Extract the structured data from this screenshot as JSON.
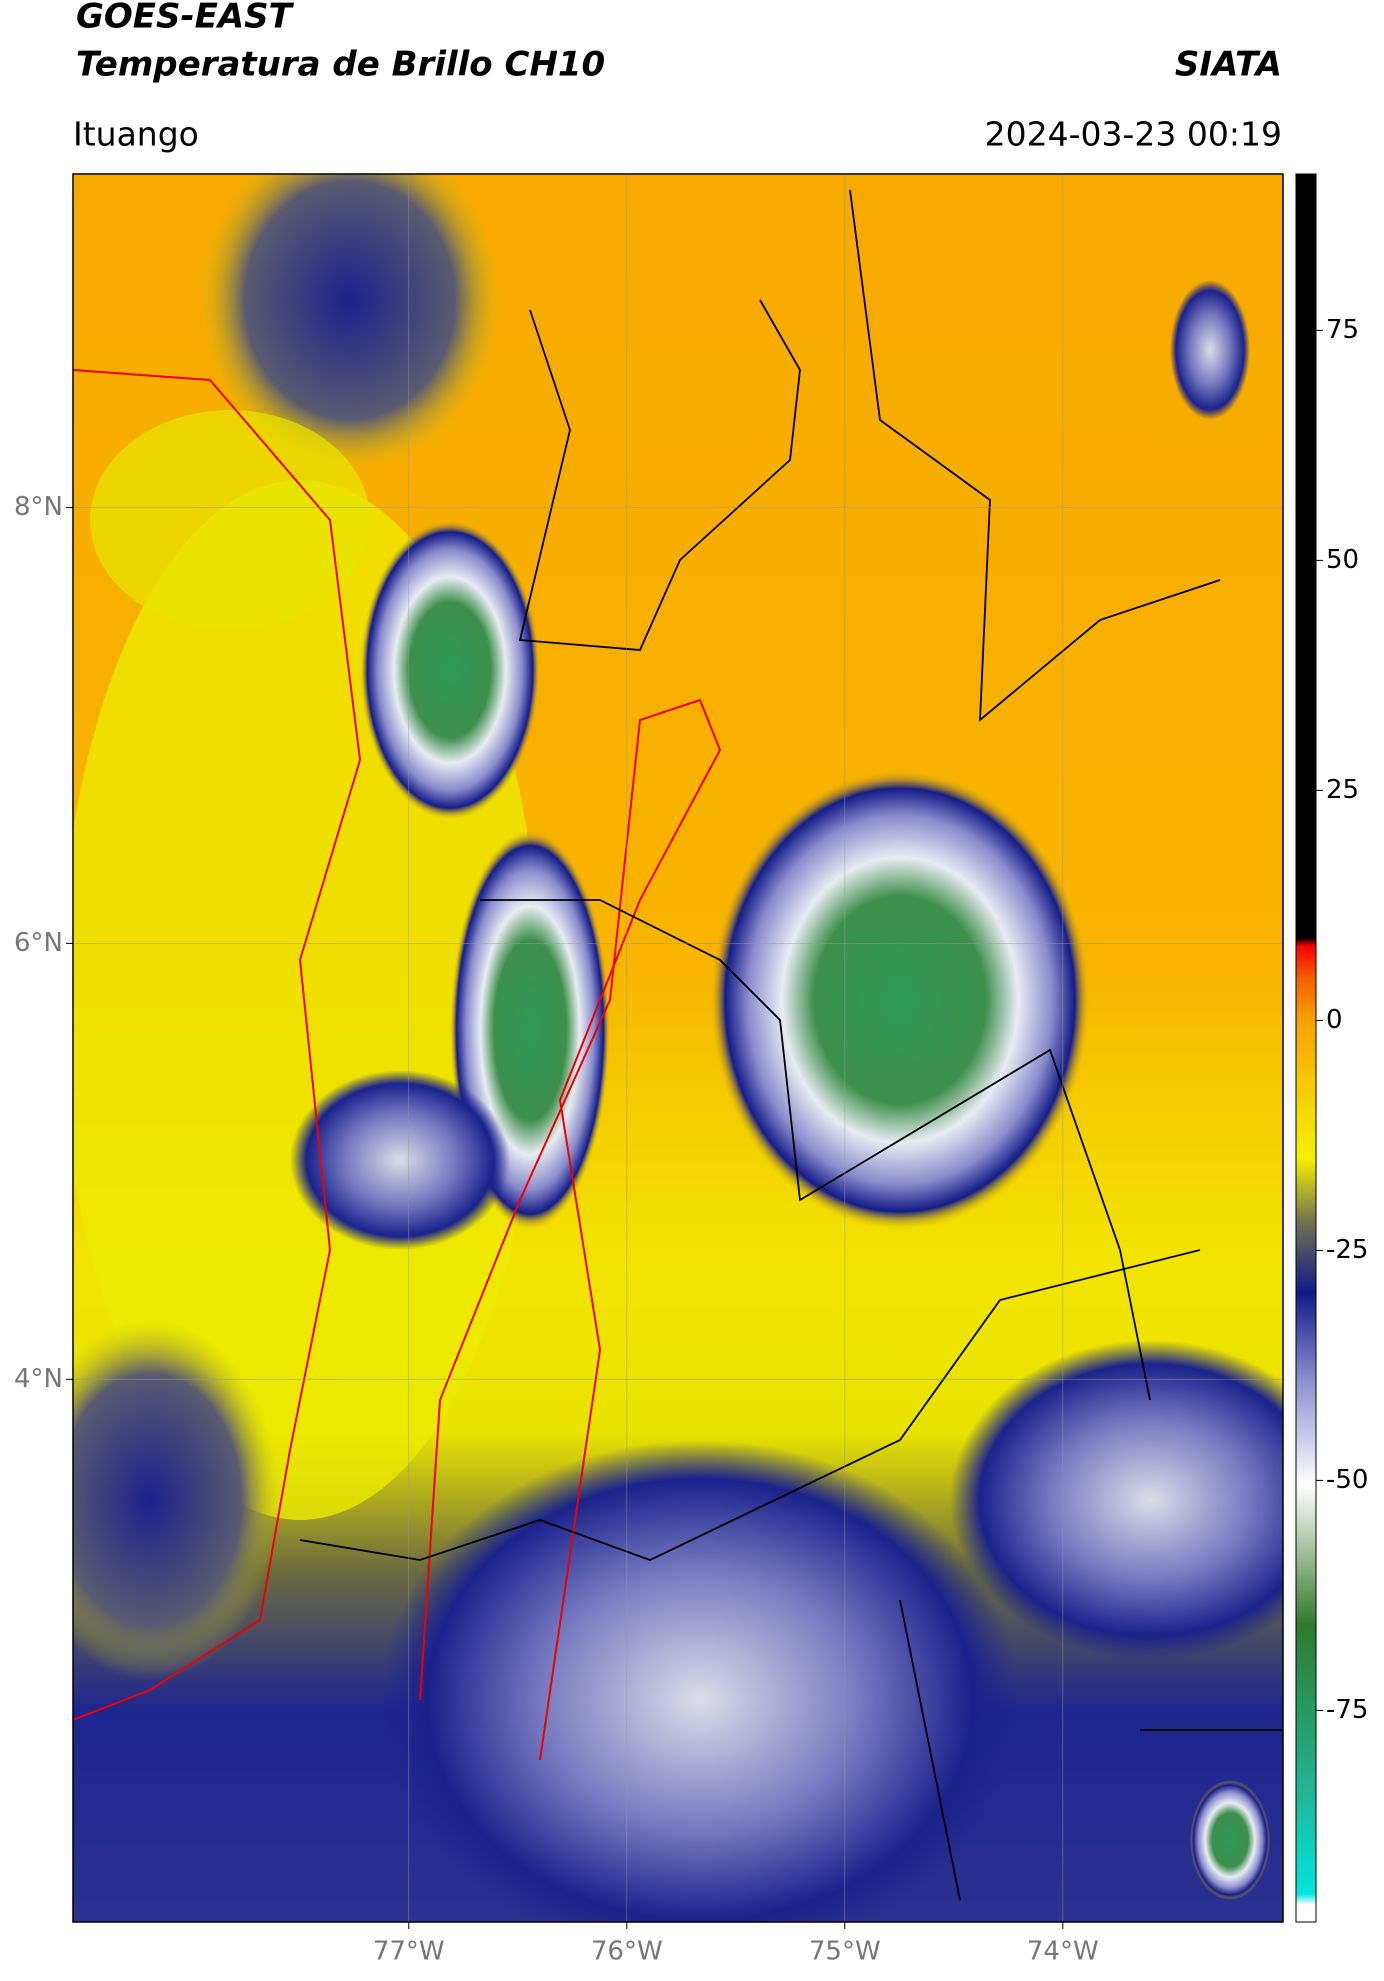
{
  "header": {
    "title": "GOES-EAST",
    "subtitle": "Temperatura de Brillo CH10",
    "brand": "SIATA",
    "location": "Ituango",
    "datetime": "2024-03-23 00:19"
  },
  "map": {
    "xlim": [
      -78.54,
      -72.99
    ],
    "ylim": [
      1.51,
      9.53
    ],
    "xticks": [
      {
        "value": -77,
        "label": "77°W"
      },
      {
        "value": -76,
        "label": "76°W"
      },
      {
        "value": -75,
        "label": "75°W"
      },
      {
        "value": -74,
        "label": "74°W"
      }
    ],
    "yticks": [
      {
        "value": 8,
        "label": "8°N"
      },
      {
        "value": 6,
        "label": "6°N"
      },
      {
        "value": 4,
        "label": "4°N"
      }
    ],
    "grid": true
  },
  "colorbar": {
    "lim": [
      -98,
      92
    ],
    "ticks": [
      75,
      50,
      25,
      0,
      -25,
      -50,
      -75
    ]
  }
}
